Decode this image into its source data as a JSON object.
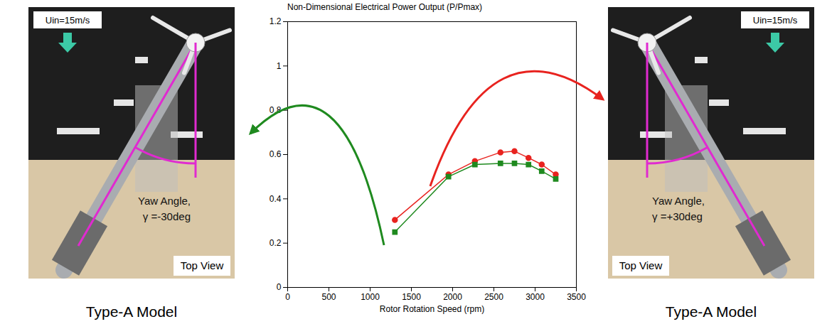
{
  "chart_data": {
    "type": "line",
    "title": "Non-Dimensional Electrical Power Output (P/Pmax)",
    "xlabel": "Rotor Rotation Speed (rpm)",
    "x": [
      1300,
      1950,
      2270,
      2580,
      2750,
      2920,
      3080,
      3250
    ],
    "xlim": [
      0,
      3500
    ],
    "xticks": [
      0,
      500,
      1000,
      1500,
      2000,
      2500,
      3000,
      3500
    ],
    "ylim": [
      0,
      1.2
    ],
    "yticks": [
      0,
      0.2,
      0.4,
      0.6,
      0.8,
      1,
      1.2
    ],
    "series": [
      {
        "color": "#e8231f",
        "marker": "circle",
        "values": [
          0.305,
          0.51,
          0.57,
          0.61,
          0.615,
          0.585,
          0.555,
          0.51
        ]
      },
      {
        "color": "#1f8a1f",
        "marker": "square",
        "values": [
          0.25,
          0.5,
          0.555,
          0.56,
          0.56,
          0.555,
          0.525,
          0.49
        ]
      }
    ]
  },
  "panels": [
    {
      "caption": "Type-A Model",
      "flow_label": "Uin=15m/s",
      "angle_title": "Yaw Angle,",
      "angle_value": "γ =-30deg",
      "view_label": "Top View"
    },
    {
      "caption": "Type-A Model",
      "flow_label": "Uin=15m/s",
      "angle_title": "Yaw Angle,",
      "angle_value": "γ =+30deg",
      "view_label": "Top View"
    }
  ]
}
